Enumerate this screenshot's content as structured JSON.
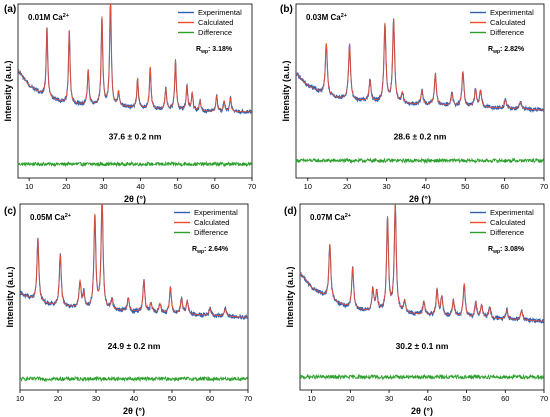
{
  "chart_data": [
    {
      "type": "line",
      "panel_label": "(a)",
      "concentration": "0.01M Ca",
      "charge": "2+",
      "rwp": "3.18%",
      "crystallite_size": "37.6 ± 0.2 nm",
      "xlabel": "2θ (°)",
      "ylabel": "Intensity (a.u.)",
      "xlim": [
        7,
        70
      ],
      "xticks": [
        10,
        20,
        30,
        40,
        50,
        60,
        70
      ],
      "legend": [
        "Experimental",
        "Calculated",
        "Difference"
      ],
      "colors": {
        "experimental": "#2b5fb3",
        "calculated": "#ef4b2c",
        "difference": "#2ca02c"
      },
      "background": [
        [
          7,
          0.62
        ],
        [
          10,
          0.53
        ],
        [
          15,
          0.46
        ],
        [
          20,
          0.43
        ],
        [
          25,
          0.42
        ],
        [
          30,
          0.42
        ],
        [
          35,
          0.41
        ],
        [
          40,
          0.4
        ],
        [
          50,
          0.39
        ],
        [
          60,
          0.38
        ],
        [
          70,
          0.38
        ]
      ],
      "peaks": [
        [
          14.8,
          0.4,
          0.25
        ],
        [
          20.8,
          0.42,
          0.25
        ],
        [
          25.9,
          0.2,
          0.25
        ],
        [
          29.6,
          0.5,
          0.25
        ],
        [
          31.9,
          0.64,
          0.25
        ],
        [
          34.1,
          0.08,
          0.25
        ],
        [
          39.2,
          0.17,
          0.25
        ],
        [
          42.6,
          0.24,
          0.25
        ],
        [
          46.8,
          0.12,
          0.25
        ],
        [
          49.4,
          0.29,
          0.25
        ],
        [
          52.5,
          0.14,
          0.25
        ],
        [
          53.9,
          0.1,
          0.25
        ],
        [
          56.0,
          0.06,
          0.25
        ],
        [
          60.5,
          0.09,
          0.25
        ],
        [
          62.5,
          0.06,
          0.25
        ],
        [
          64.2,
          0.08,
          0.25
        ]
      ],
      "difference_level": 0.08
    },
    {
      "type": "line",
      "panel_label": "(b)",
      "concentration": "0.03M Ca",
      "charge": "2+",
      "rwp": "2.82%",
      "crystallite_size": "28.6 ± 0.2 nm",
      "xlabel": "2θ (°)",
      "ylabel": "Intensity (a.u.)",
      "xlim": [
        7,
        70
      ],
      "xticks": [
        10,
        20,
        30,
        40,
        50,
        60,
        70
      ],
      "legend": [
        "Experimental",
        "Calculated",
        "Difference"
      ],
      "colors": {
        "experimental": "#2b5fb3",
        "calculated": "#ef4b2c",
        "difference": "#2ca02c"
      },
      "background": [
        [
          7,
          0.6
        ],
        [
          10,
          0.53
        ],
        [
          15,
          0.47
        ],
        [
          20,
          0.45
        ],
        [
          25,
          0.44
        ],
        [
          30,
          0.43
        ],
        [
          40,
          0.42
        ],
        [
          50,
          0.41
        ],
        [
          60,
          0.4
        ],
        [
          70,
          0.39
        ]
      ],
      "peaks": [
        [
          14.7,
          0.3,
          0.3
        ],
        [
          20.6,
          0.32,
          0.3
        ],
        [
          25.8,
          0.12,
          0.3
        ],
        [
          29.6,
          0.45,
          0.3
        ],
        [
          31.8,
          0.48,
          0.3
        ],
        [
          34.0,
          0.06,
          0.3
        ],
        [
          39.0,
          0.08,
          0.3
        ],
        [
          42.4,
          0.18,
          0.3
        ],
        [
          46.6,
          0.07,
          0.3
        ],
        [
          49.4,
          0.2,
          0.3
        ],
        [
          52.6,
          0.1,
          0.3
        ],
        [
          53.9,
          0.09,
          0.3
        ],
        [
          60.2,
          0.05,
          0.3
        ],
        [
          64.0,
          0.04,
          0.3
        ]
      ],
      "difference_level": 0.1
    },
    {
      "type": "line",
      "panel_label": "(c)",
      "concentration": "0.05M Ca",
      "charge": "2+",
      "rwp": "2.64%",
      "crystallite_size": "24.9 ± 0.2  nm",
      "xlabel": "2θ (°)",
      "ylabel": "Intensity (a.u.)",
      "xlim": [
        10,
        70
      ],
      "xticks": [
        10,
        20,
        30,
        40,
        50,
        60,
        70
      ],
      "legend": [
        "Experimental",
        "Calculated",
        "Difference"
      ],
      "colors": {
        "experimental": "#2b5fb3",
        "calculated": "#ef4b2c",
        "difference": "#2ca02c"
      },
      "background": [
        [
          10,
          0.52
        ],
        [
          15,
          0.47
        ],
        [
          20,
          0.45
        ],
        [
          25,
          0.44
        ],
        [
          30,
          0.43
        ],
        [
          40,
          0.42
        ],
        [
          50,
          0.41
        ],
        [
          60,
          0.4
        ],
        [
          70,
          0.39
        ]
      ],
      "peaks": [
        [
          14.7,
          0.34,
          0.3
        ],
        [
          20.6,
          0.28,
          0.3
        ],
        [
          25.8,
          0.14,
          0.3
        ],
        [
          26.8,
          0.08,
          0.3
        ],
        [
          29.7,
          0.5,
          0.3
        ],
        [
          31.6,
          0.6,
          0.3
        ],
        [
          34.2,
          0.06,
          0.3
        ],
        [
          38.5,
          0.07,
          0.3
        ],
        [
          42.6,
          0.17,
          0.3
        ],
        [
          44.5,
          0.05,
          0.3
        ],
        [
          46.8,
          0.05,
          0.3
        ],
        [
          49.6,
          0.14,
          0.3
        ],
        [
          52.5,
          0.08,
          0.3
        ],
        [
          54.0,
          0.07,
          0.3
        ],
        [
          60.0,
          0.04,
          0.3
        ],
        [
          64.0,
          0.04,
          0.3
        ]
      ],
      "difference_level": 0.06
    },
    {
      "type": "line",
      "panel_label": "(d)",
      "concentration": "0.07M Ca",
      "charge": "2+",
      "rwp": "3.08%",
      "crystallite_size": "30.2  ± 0.1 nm",
      "xlabel": "2θ (°)",
      "ylabel": "Intensity (a.u.)",
      "xlim": [
        7,
        70
      ],
      "xticks": [
        10,
        20,
        30,
        40,
        50,
        60,
        70
      ],
      "legend": [
        "Experimental",
        "Calculated",
        "Difference"
      ],
      "colors": {
        "experimental": "#2b5fb3",
        "calculated": "#ef4b2c",
        "difference": "#2ca02c"
      },
      "background": [
        [
          7,
          0.63
        ],
        [
          10,
          0.55
        ],
        [
          15,
          0.48
        ],
        [
          20,
          0.44
        ],
        [
          25,
          0.42
        ],
        [
          30,
          0.42
        ],
        [
          40,
          0.4
        ],
        [
          50,
          0.39
        ],
        [
          60,
          0.38
        ],
        [
          70,
          0.37
        ]
      ],
      "peaks": [
        [
          14.7,
          0.3,
          0.3
        ],
        [
          20.6,
          0.22,
          0.3
        ],
        [
          25.8,
          0.12,
          0.3
        ],
        [
          26.8,
          0.1,
          0.3
        ],
        [
          29.6,
          0.5,
          0.3
        ],
        [
          31.6,
          0.58,
          0.3
        ],
        [
          34.0,
          0.06,
          0.3
        ],
        [
          39.0,
          0.07,
          0.3
        ],
        [
          42.4,
          0.14,
          0.3
        ],
        [
          43.6,
          0.1,
          0.3
        ],
        [
          46.6,
          0.09,
          0.3
        ],
        [
          49.4,
          0.18,
          0.3
        ],
        [
          52.4,
          0.08,
          0.3
        ],
        [
          53.9,
          0.07,
          0.3
        ],
        [
          56.0,
          0.06,
          0.3
        ],
        [
          60.4,
          0.05,
          0.3
        ],
        [
          64.2,
          0.05,
          0.3
        ]
      ],
      "difference_level": 0.07
    }
  ]
}
